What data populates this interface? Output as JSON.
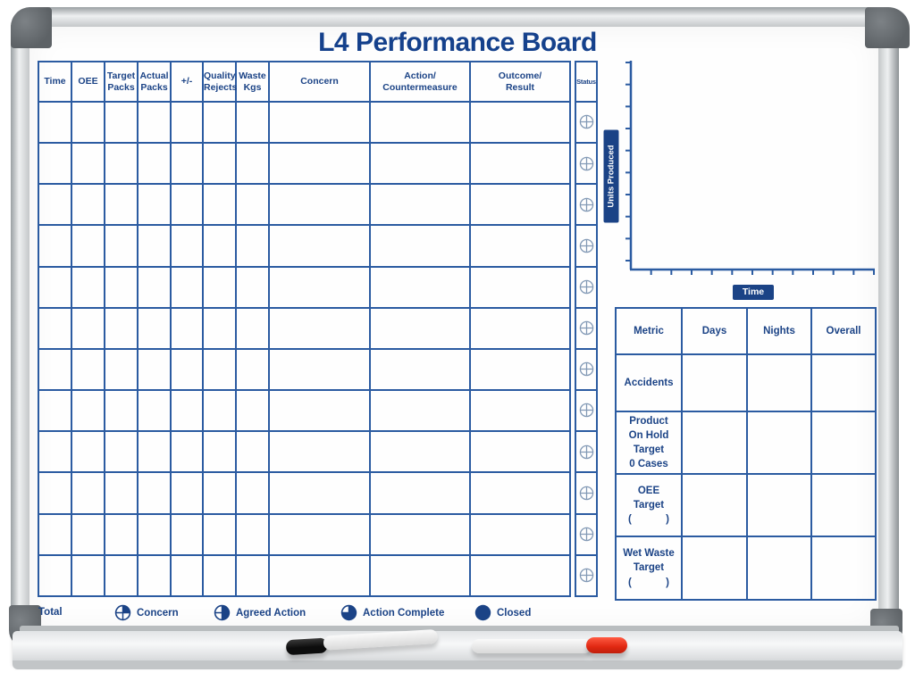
{
  "board": {
    "title": "L4 Performance Board"
  },
  "main_table": {
    "headers": [
      "Time",
      "OEE",
      "Target\nPacks",
      "Actual\nPacks",
      "+/-",
      "Quality\nRejects",
      "Waste\nKgs",
      "Concern",
      "Action/\nCountermeasure",
      "Outcome/\nResult"
    ],
    "row_count": 12,
    "total_label": "Total"
  },
  "status_column": {
    "header": "Status",
    "row_count": 12,
    "icon": "quartered-circle-empty"
  },
  "chart_data": {
    "type": "line",
    "title": "",
    "xlabel": "Time",
    "ylabel": "Units Produced",
    "x": [],
    "series": [],
    "x_tick_count": 12,
    "y_tick_count": 10,
    "grid": false,
    "note": "empty axes template - no data plotted yet"
  },
  "metrics_table": {
    "headers": [
      "Metric",
      "Days",
      "Nights",
      "Overall"
    ],
    "rows": [
      {
        "metric": "Accidents",
        "days": "",
        "nights": "",
        "overall": ""
      },
      {
        "metric": "Product\nOn Hold\nTarget\n0 Cases",
        "days": "",
        "nights": "",
        "overall": ""
      },
      {
        "metric": "OEE\nTarget\n(            )",
        "days": "",
        "nights": "",
        "overall": ""
      },
      {
        "metric": "Wet Waste\nTarget\n(            )",
        "days": "",
        "nights": "",
        "overall": ""
      }
    ]
  },
  "legend": [
    {
      "label": "Concern",
      "state": "quarter-filled"
    },
    {
      "label": "Agreed Action",
      "state": "half-filled"
    },
    {
      "label": "Action Complete",
      "state": "three-quarter-filled"
    },
    {
      "label": "Closed",
      "state": "filled"
    }
  ],
  "colors": {
    "navy": "#1b4386",
    "grid_blue": "#2b5ba1",
    "status_icon": "#8299b5",
    "marker_red": "#e02812",
    "marker_black": "#111111",
    "frame_silver": "#d7dadb",
    "corner_cap": "#63686c"
  }
}
